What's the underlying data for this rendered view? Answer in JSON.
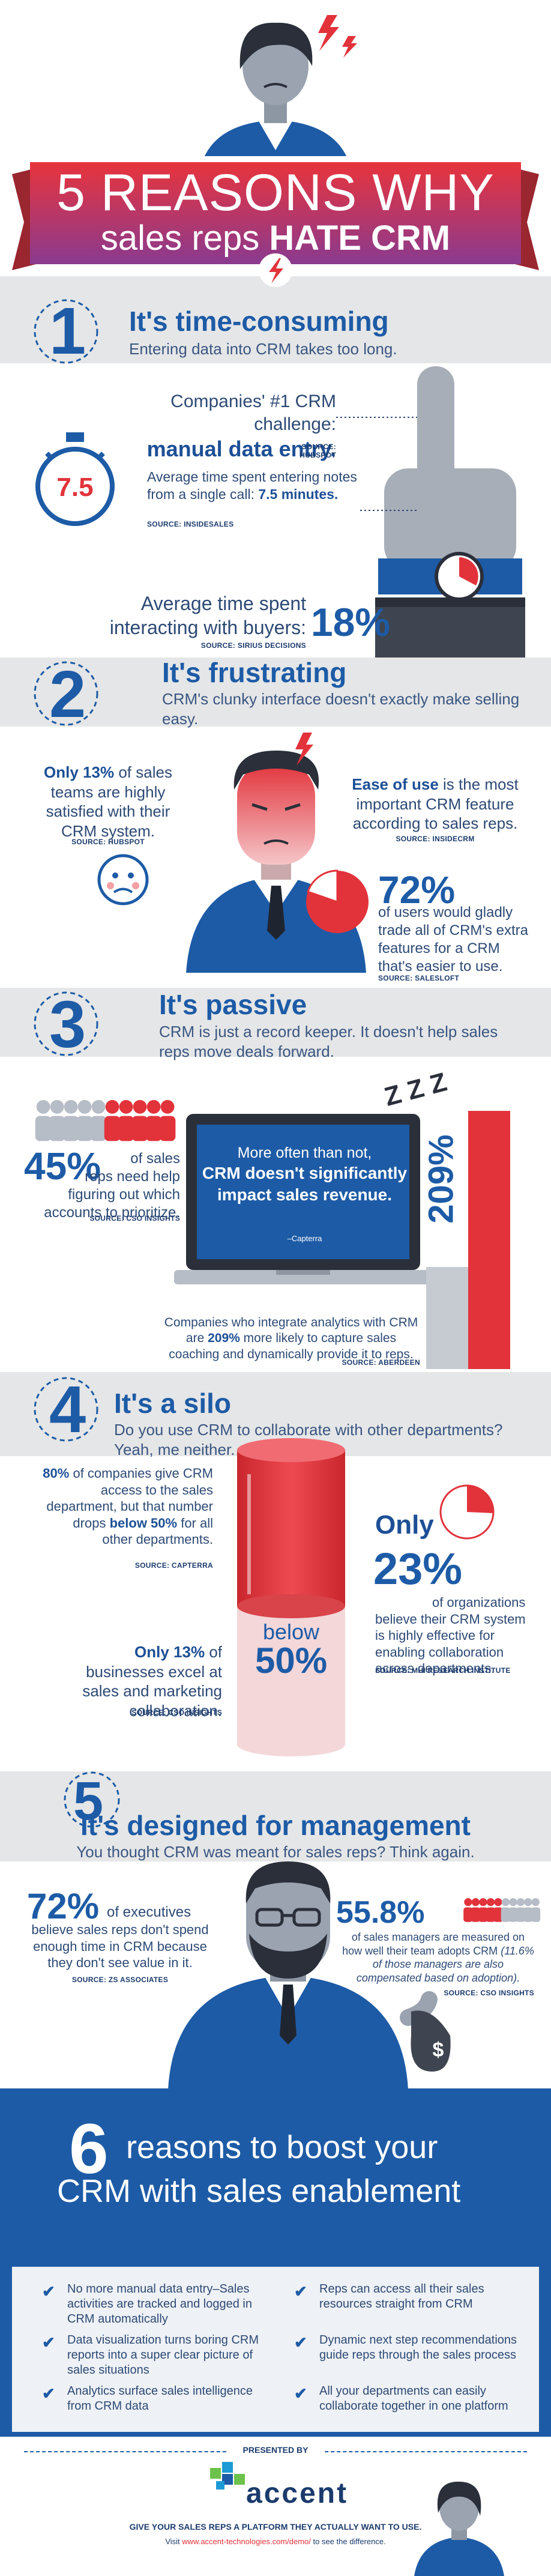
{
  "header": {
    "line1": "5 REASONS WHY",
    "line2a": "sales reps",
    "line2b": "HATE CRM"
  },
  "reasons": [
    {
      "number": "1",
      "title": "It's time-consuming",
      "subtitle": "Entering data into CRM takes too long."
    },
    {
      "number": "2",
      "title": "It's frustrating",
      "subtitle": "CRM's clunky interface doesn't exactly make selling easy."
    },
    {
      "number": "3",
      "title": "It's passive",
      "subtitle": "CRM is just a record keeper. It doesn't help sales reps move deals forward."
    },
    {
      "number": "4",
      "title": "It's a silo",
      "subtitle": "Do you use CRM to collaborate with other departments? Yeah, me neither."
    },
    {
      "number": "5",
      "title": "It's designed for management",
      "subtitle": "You thought CRM was meant for sales reps? Think again."
    }
  ],
  "s1": {
    "challenge": [
      "Companies' #1 CRM challenge:",
      "manual data entry."
    ],
    "challenge_source": "SOURCE: HUBSPOT",
    "stopwatch": "7.5",
    "notes": [
      "Average time spent entering notes from a single call:",
      "7.5 minutes."
    ],
    "notes_source": "SOURCE: INSIDESALES",
    "buyers": [
      "Average time spent interacting with buyers:",
      "18%"
    ],
    "buyers_source": "SOURCE: SIRIUS DECISIONS"
  },
  "s2": {
    "satisfied": [
      "Only 13%",
      "of sales teams are highly satisfied with their CRM system."
    ],
    "satisfied_source": "SOURCE: HUBSPOT",
    "ease": [
      "Ease of use",
      "is the most important CRM feature according to sales reps."
    ],
    "ease_source": "SOURCE: INSIDECRM",
    "trade": [
      "72%",
      "of users would gladly trade all of CRM's extra features for a CRM that's easier to use."
    ],
    "trade_source": "SOURCE: SALESLOFT"
  },
  "s3": {
    "help": [
      "45%",
      "of sales reps need help figuring out which accounts to prioritize."
    ],
    "help_source": "SOURCE: CSO INSIGHTS",
    "quote": [
      "More often than not,",
      "CRM doesn't significantly impact sales revenue."
    ],
    "quote_source": "–Capterra",
    "zzz": "Z Z Z",
    "bar_label": "209%",
    "analytics": [
      "Companies who integrate analytics with CRM are",
      "209%",
      "more likely to capture sales coaching and dynamically provide it to reps."
    ],
    "analytics_source": "SOURCE: ABERDEEN"
  },
  "s4": {
    "access": [
      "80%",
      "of companies give CRM access to the sales department, but that number drops",
      "below 50%",
      "for all other departments."
    ],
    "access_source": "SOURCE: CAPTERRA",
    "cylinder": [
      "below",
      "50%"
    ],
    "effective": [
      "Only",
      "23%",
      "of organizations believe their CRM system is highly effective for enabling collaboration across departments."
    ],
    "effective_source": "SOURCE: MHI RESEARCH INSTITUTE",
    "excel": [
      "Only 13%",
      "of businesses excel at sales and marketing collaboration."
    ],
    "excel_source": "SOURCE: CSO INSIGHTS"
  },
  "s5": {
    "executives": [
      "72%",
      "of executives",
      "believe sales reps don't spend enough time in CRM because they don't see value in it."
    ],
    "executives_source": "SOURCE: ZS ASSOCIATES",
    "managers": [
      "55.8%",
      "of sales managers are measured on how well their team adopts CRM",
      "(11.6% of those managers are also compensated based on adoption)."
    ],
    "managers_source": "SOURCE: CSO INSIGHTS",
    "bag": "$"
  },
  "s6": {
    "number": "6",
    "heading1": "reasons to boost your",
    "heading2": "CRM with sales enablement",
    "left": [
      "No more manual data entry–Sales activities are tracked and logged in CRM automatically",
      "Data visualization turns boring CRM reports into a super clear picture of sales situations",
      "Analytics surface sales intelligence from CRM data"
    ],
    "right": [
      "Reps can access all their sales resources straight from CRM",
      "Dynamic next step recommendations guide reps through the sales process",
      "All your departments can easily collaborate together in one platform"
    ]
  },
  "footer": {
    "presented": "PRESENTED BY",
    "logo": "accent",
    "tagline": "GIVE YOUR SALES REPS A PLATFORM THEY ACTUALLY WANT TO USE.",
    "visit": [
      "Visit",
      "www.accent-technologies.com/demo/",
      "to see the difference."
    ]
  }
}
